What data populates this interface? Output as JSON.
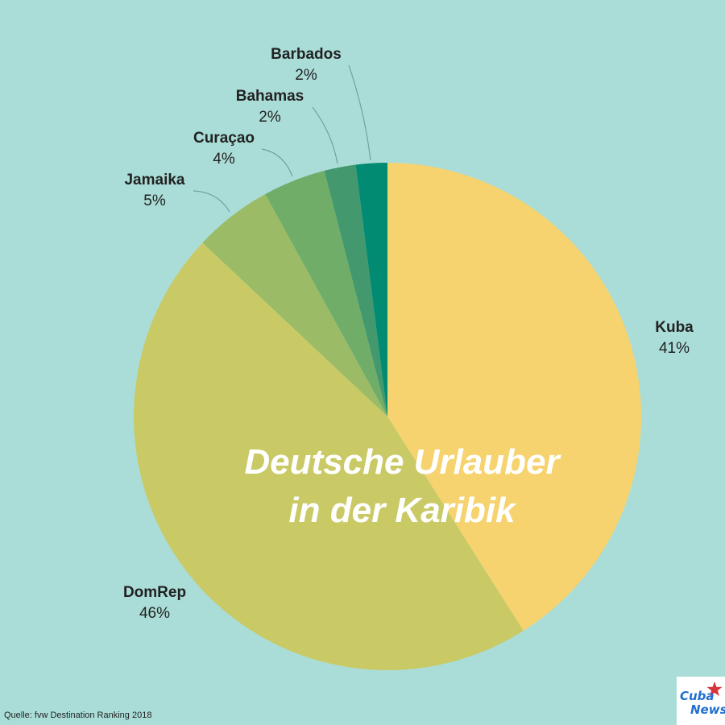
{
  "chart_data": {
    "type": "pie",
    "title_lines": [
      "Deutsche Urlauber",
      "in der Karibik"
    ],
    "slices": [
      {
        "name": "Kuba",
        "value": 41,
        "label": "41%",
        "color": "#f6d36f"
      },
      {
        "name": "DomRep",
        "value": 46,
        "label": "46%",
        "color": "#c9ca66"
      },
      {
        "name": "Jamaika",
        "value": 5,
        "label": "5%",
        "color": "#9bbb66"
      },
      {
        "name": "Curaçao",
        "value": 4,
        "label": "4%",
        "color": "#70ad69"
      },
      {
        "name": "Bahamas",
        "value": 2,
        "label": "2%",
        "color": "#43996d"
      },
      {
        "name": "Barbados",
        "value": 2,
        "label": "2%",
        "color": "#008b72"
      }
    ],
    "start": "12 o'clock",
    "direction": "clockwise"
  },
  "source": "Quelle: fvw Destination Ranking 2018",
  "logo": {
    "line1": "Cuba",
    "line2": "News",
    "star_color": "#d8343a",
    "text_color": "#1f6fd0"
  },
  "colors": {
    "background": "#aaddd7",
    "leader_line": "#6fa59c"
  }
}
